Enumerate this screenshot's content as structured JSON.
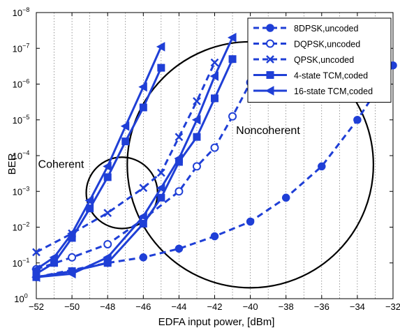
{
  "chart_data": {
    "type": "line",
    "xlabel": "EDFA input power, [dBm]",
    "ylabel": "BER",
    "xlim": [
      -52,
      -32
    ],
    "ylim_exp": [
      -8,
      0
    ],
    "y_scale": "log",
    "grid": true,
    "legend_position": "top-right",
    "x_ticks": [
      -52,
      -50,
      -48,
      -46,
      -44,
      -42,
      -40,
      -38,
      -36,
      -34,
      -32
    ],
    "y_ticks_exp": [
      0,
      -1,
      -2,
      -3,
      -4,
      -5,
      -6,
      -7,
      -8
    ],
    "color": "#1f3fd6",
    "series": [
      {
        "name": "8DPSK,uncoded",
        "style": "dashed",
        "marker": "circle-filled",
        "points": [
          [
            -52,
            0.25
          ],
          [
            -48,
            0.1
          ],
          [
            -46,
            0.07
          ],
          [
            -44,
            0.04
          ],
          [
            -42,
            0.018
          ],
          [
            -40,
            0.007
          ],
          [
            -38,
            0.0015
          ],
          [
            -36,
            0.0002
          ],
          [
            -34,
            1e-05
          ],
          [
            -32,
            3e-07
          ]
        ]
      },
      {
        "name": "DQPSK,uncoded",
        "style": "dashed",
        "marker": "circle-open",
        "points": [
          [
            -52,
            0.15
          ],
          [
            -50,
            0.07
          ],
          [
            -48,
            0.03
          ],
          [
            -46,
            0.006
          ],
          [
            -44,
            0.001
          ],
          [
            -43,
            0.0002
          ],
          [
            -42,
            6e-05
          ],
          [
            -41,
            8e-06
          ],
          [
            -40,
            9e-07
          ],
          [
            -39,
            8e-08
          ]
        ]
      },
      {
        "name": "QPSK,uncoded",
        "style": "dashed",
        "marker": "x",
        "points": [
          [
            -52,
            0.05
          ],
          [
            -50,
            0.015
          ],
          [
            -48,
            0.004
          ],
          [
            -46,
            0.0008
          ],
          [
            -45,
            0.0003
          ],
          [
            -44,
            3e-05
          ],
          [
            -43,
            3e-06
          ],
          [
            -42,
            2.5e-07
          ]
        ]
      },
      {
        "name": "4-state TCM,coded",
        "style": "solid",
        "marker": "square",
        "points": [
          [
            -52,
            0.25
          ],
          [
            -50,
            0.17
          ],
          [
            -48,
            0.1
          ],
          [
            -46,
            0.008
          ],
          [
            -45,
            0.0015
          ],
          [
            -44,
            0.00015
          ],
          [
            -43,
            3e-05
          ],
          [
            -42,
            2.5e-06
          ],
          [
            -41,
            2e-07
          ]
        ]
      },
      {
        "name": "16-state TCM,coded",
        "style": "solid",
        "marker": "triangle-left",
        "points": [
          [
            -52,
            0.25
          ],
          [
            -50,
            0.2
          ],
          [
            -48,
            0.07
          ],
          [
            -46,
            0.005
          ],
          [
            -45,
            0.0008
          ],
          [
            -44,
            0.00012
          ],
          [
            -43,
            1e-05
          ],
          [
            -42,
            6e-07
          ],
          [
            -41,
            5e-08
          ]
        ]
      },
      {
        "name": "",
        "style": "solid",
        "marker": "square",
        "points": [
          [
            -52,
            0.2
          ],
          [
            -51,
            0.1
          ],
          [
            -50,
            0.02
          ],
          [
            -49,
            0.003
          ],
          [
            -48,
            0.0004
          ],
          [
            -47,
            4e-05
          ],
          [
            -46,
            4.5e-06
          ],
          [
            -45,
            3.5e-07
          ]
        ]
      },
      {
        "name": "",
        "style": "solid",
        "marker": "triangle-left",
        "points": [
          [
            -52,
            0.15
          ],
          [
            -51,
            0.07
          ],
          [
            -50,
            0.015
          ],
          [
            -49,
            0.0018
          ],
          [
            -48,
            0.0002
          ],
          [
            -47,
            1.5e-05
          ],
          [
            -46,
            1.2e-06
          ],
          [
            -45,
            9e-08
          ]
        ]
      }
    ],
    "annotations": [
      {
        "text": "Coherent",
        "x": -51.9,
        "y": 0.00022
      },
      {
        "text": "Noncoherent",
        "x": -40.8,
        "y": 2.5e-05
      }
    ],
    "ellipses": [
      {
        "cx": -47.2,
        "cy": 0.0011,
        "rx_db": 2.0,
        "ry_decades": 0.3
      },
      {
        "cx": -40.0,
        "cy": 0.00018,
        "rx_db": 6.9,
        "ry_decades": 0.36
      }
    ]
  }
}
